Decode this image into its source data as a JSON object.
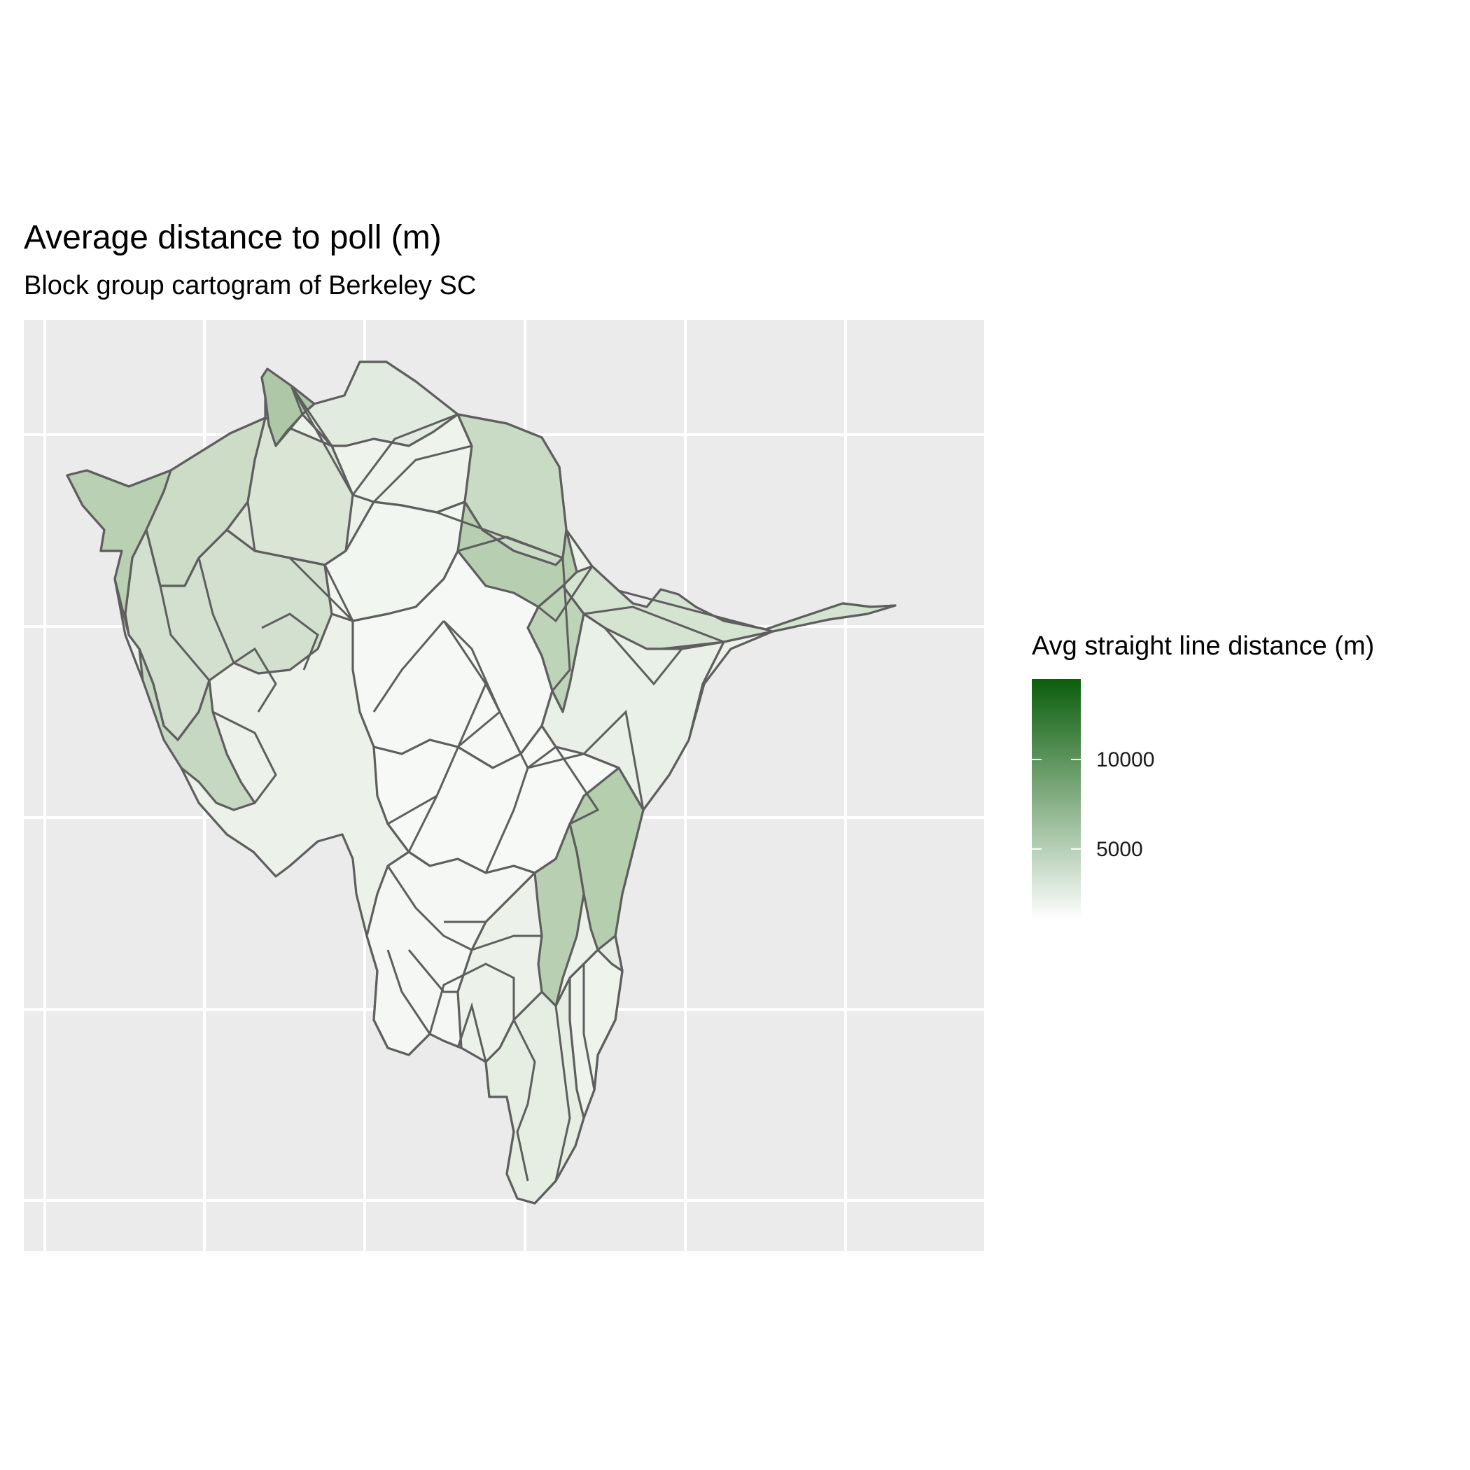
{
  "title": "Average distance to poll (m)",
  "subtitle": "Block group cartogram of Berkeley SC",
  "legend": {
    "title": "Avg straight line distance (m)",
    "breaks": [
      {
        "value": 10000,
        "label": "10000"
      },
      {
        "value": 5000,
        "label": "5000"
      }
    ],
    "min": 1000,
    "max": 14500,
    "color_low": "#ffffff",
    "color_high": "#0b5e0b"
  },
  "colors": {
    "panel_background": "#ebebeb",
    "grid": "#ffffff",
    "region_border": "#5e5e5e"
  }
}
